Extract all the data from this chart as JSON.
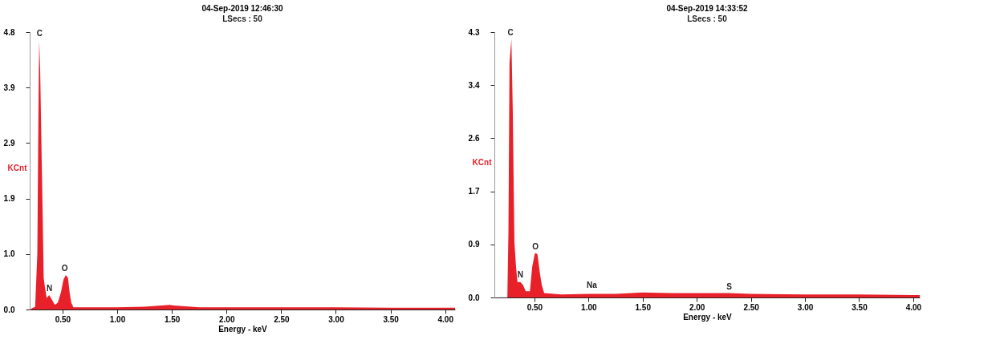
{
  "chart_data": [
    {
      "type": "area",
      "title": "04-Sep-2019 12:46:30",
      "subtitle": "LSecs : 50",
      "xlabel": "Energy - keV",
      "ylabel": "KCnt",
      "grid": false,
      "xlim": [
        0.2,
        4.09
      ],
      "ylim": [
        0,
        4.83
      ],
      "xticks": [
        {
          "value": 0.5,
          "label": "0.50"
        },
        {
          "value": 1,
          "label": "1.00"
        },
        {
          "value": 1.5,
          "label": "1.50"
        },
        {
          "value": 2,
          "label": "2.00"
        },
        {
          "value": 2.5,
          "label": "2.50"
        },
        {
          "value": 3,
          "label": "3.00"
        },
        {
          "value": 3.5,
          "label": "3.50"
        },
        {
          "value": 4,
          "label": "4.00"
        }
      ],
      "yticks": [
        {
          "value": 0,
          "label": "0.0"
        },
        {
          "value": 0.966,
          "label": "1.0"
        },
        {
          "value": 1.932,
          "label": "1.9"
        },
        {
          "value": 2.898,
          "label": "2.9"
        },
        {
          "value": 3.864,
          "label": "3.9"
        },
        {
          "value": 4.83,
          "label": "4.8"
        }
      ],
      "x": [
        0.2,
        0.25,
        0.27,
        0.28,
        0.287,
        0.296,
        0.308,
        0.319,
        0.328,
        0.34,
        0.355,
        0.378,
        0.4,
        0.43,
        0.457,
        0.486,
        0.509,
        0.53,
        0.55,
        0.565,
        0.58,
        0.6,
        0.8,
        1.0,
        1.25,
        1.48,
        1.52,
        1.75,
        2.0,
        2.5,
        3.0,
        3.5,
        4.0,
        4.09
      ],
      "series": [
        {
          "color": "#e8202a",
          "values": [
            0,
            0.05,
            0.98,
            3.45,
            4.68,
            4.15,
            2.8,
            1.6,
            0.55,
            0.38,
            0.2,
            0.25,
            0.18,
            0.08,
            0.12,
            0.3,
            0.52,
            0.6,
            0.55,
            0.3,
            0.12,
            0.04,
            0.04,
            0.04,
            0.05,
            0.08,
            0.07,
            0.04,
            0.04,
            0.04,
            0.04,
            0.03,
            0.03,
            0.03
          ]
        }
      ],
      "annotations": [
        {
          "text": "C",
          "x": 0.29,
          "y": 4.7
        },
        {
          "text": "N",
          "x": 0.38,
          "y": 0.27
        },
        {
          "text": "O",
          "x": 0.52,
          "y": 0.62
        }
      ]
    },
    {
      "type": "area",
      "title": "04-Sep-2019 14:33:52",
      "subtitle": "LSecs : 50",
      "xlabel": "Energy - keV",
      "ylabel": "KCnt",
      "grid": false,
      "xlim": [
        0.13,
        4.06
      ],
      "ylim": [
        0,
        4.3
      ],
      "xticks": [
        {
          "value": 0.5,
          "label": "0.50"
        },
        {
          "value": 1,
          "label": "1.00"
        },
        {
          "value": 1.5,
          "label": "1.50"
        },
        {
          "value": 2,
          "label": "2.00"
        },
        {
          "value": 2.5,
          "label": "2.50"
        },
        {
          "value": 3,
          "label": "3.00"
        },
        {
          "value": 3.5,
          "label": "3.50"
        },
        {
          "value": 4,
          "label": "4.00"
        }
      ],
      "yticks": [
        {
          "value": 0,
          "label": "0.0"
        },
        {
          "value": 0.86,
          "label": "0.9"
        },
        {
          "value": 1.72,
          "label": "1.7"
        },
        {
          "value": 2.58,
          "label": "2.6"
        },
        {
          "value": 3.44,
          "label": "3.4"
        },
        {
          "value": 4.3,
          "label": "4.3"
        }
      ],
      "x": [
        0.13,
        0.25,
        0.26,
        0.27,
        0.287,
        0.3,
        0.315,
        0.33,
        0.343,
        0.37,
        0.395,
        0.42,
        0.458,
        0.48,
        0.505,
        0.528,
        0.55,
        0.568,
        0.59,
        0.75,
        1.0,
        1.25,
        1.5,
        1.75,
        2.0,
        2.3,
        2.5,
        3.0,
        3.5,
        4.0,
        4.06
      ],
      "series": [
        {
          "color": "#e8202a",
          "values": [
            0,
            0,
            1.07,
            3.8,
            4.19,
            3.03,
            0.9,
            0.5,
            0.25,
            0.25,
            0.2,
            0.1,
            0.1,
            0.5,
            0.72,
            0.7,
            0.4,
            0.2,
            0.07,
            0.05,
            0.06,
            0.06,
            0.08,
            0.07,
            0.07,
            0.07,
            0.06,
            0.05,
            0.05,
            0.04,
            0.04
          ]
        }
      ],
      "annotations": [
        {
          "text": "C",
          "x": 0.28,
          "y": 4.2
        },
        {
          "text": "N",
          "x": 0.37,
          "y": 0.27
        },
        {
          "text": "O",
          "x": 0.51,
          "y": 0.73
        },
        {
          "text": "Na",
          "x": 1.03,
          "y": 0.1
        },
        {
          "text": "S",
          "x": 2.3,
          "y": 0.08
        }
      ]
    }
  ]
}
